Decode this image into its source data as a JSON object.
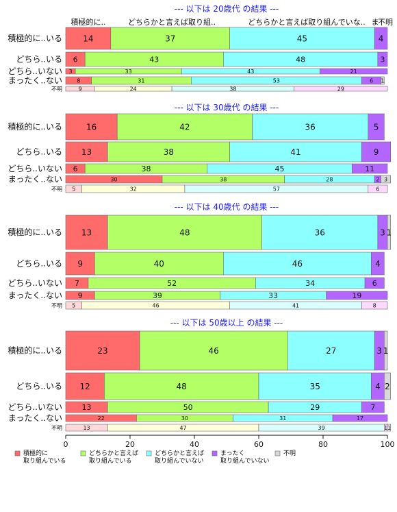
{
  "colors": {
    "積極的に取り組んでいる": "#ff6b6b",
    "どちらかと言えば取り組んでいる": "#b3ff66",
    "どちらかと言えば取り組んでいない": "#8cffff",
    "まったく取り組んでいない": "#b366ff",
    "不明": "#d9d9d9"
  },
  "chart_data": {
    "type": "bar",
    "orientation": "horizontal",
    "stacked": true,
    "xlim": [
      0,
      100
    ],
    "xticks": [
      0,
      20,
      40,
      60,
      80,
      100
    ],
    "column_headers": [
      "積極的に..",
      "どちらかと言えば取り組..",
      "どちらかと言えば取り組んでいな..",
      "ま",
      "不明"
    ],
    "legend": {
      "placement": "bottom",
      "entries": [
        {
          "key": "積極的に取り組んでいる",
          "lines": [
            "積極的に",
            "取り組んでいる"
          ]
        },
        {
          "key": "どちらかと言えば取り組んでいる",
          "lines": [
            "どちらかと言えば",
            "取り組んでいる"
          ]
        },
        {
          "key": "どちらかと言えば取り組んでいない",
          "lines": [
            "どちらかと言えば",
            "取り組んでいない"
          ]
        },
        {
          "key": "まったく取り組んでいない",
          "lines": [
            "まったく",
            "取り組んでいない"
          ]
        },
        {
          "key": "不明",
          "lines": [
            "不明"
          ]
        }
      ]
    },
    "panels": [
      {
        "title": "--- 以下は 20歳代 の結果 ---",
        "rows": [
          {
            "label": "積極的に..いる",
            "values": [
              14,
              37,
              45,
              4,
              0
            ]
          },
          {
            "label": "どちら..いる",
            "values": [
              6,
              43,
              48,
              3,
              0
            ]
          },
          {
            "label": "どちら..いない",
            "values": [
              3,
              33,
              43,
              21,
              0
            ]
          },
          {
            "label": "まったく..ない",
            "values": [
              8,
              31,
              53,
              6,
              1
            ]
          },
          {
            "label": "不明",
            "values": [
              9,
              24,
              38,
              29,
              0
            ]
          }
        ]
      },
      {
        "title": "--- 以下は 30歳代 の結果 ---",
        "rows": [
          {
            "label": "積極的に..いる",
            "values": [
              16,
              42,
              36,
              5,
              0
            ]
          },
          {
            "label": "どちら..いる",
            "values": [
              13,
              38,
              41,
              9,
              0
            ]
          },
          {
            "label": "どちら..いない",
            "values": [
              6,
              38,
              45,
              11,
              0
            ]
          },
          {
            "label": "まったく..ない",
            "values": [
              30,
              38,
              28,
              2,
              3
            ]
          },
          {
            "label": "不明",
            "values": [
              5,
              32,
              57,
              6,
              0
            ]
          }
        ]
      },
      {
        "title": "--- 以下は 40歳代 の結果 ---",
        "rows": [
          {
            "label": "積極的に..いる",
            "values": [
              13,
              48,
              36,
              3,
              1
            ]
          },
          {
            "label": "どちら..いる",
            "values": [
              9,
              40,
              46,
              4,
              0
            ]
          },
          {
            "label": "どちら..いない",
            "values": [
              7,
              52,
              34,
              6,
              0
            ]
          },
          {
            "label": "まったく..ない",
            "values": [
              9,
              39,
              33,
              19,
              0
            ]
          },
          {
            "label": "不明",
            "values": [
              5,
              46,
              41,
              8,
              0
            ]
          }
        ]
      },
      {
        "title": "--- 以下は 50歳以上 の結果 ---",
        "rows": [
          {
            "label": "積極的に..いる",
            "values": [
              23,
              46,
              27,
              3,
              1
            ]
          },
          {
            "label": "どちら..いる",
            "values": [
              12,
              48,
              35,
              4,
              2
            ]
          },
          {
            "label": "どちら..いない",
            "values": [
              13,
              50,
              29,
              7,
              0
            ]
          },
          {
            "label": "まったく..ない",
            "values": [
              22,
              30,
              31,
              17,
              0
            ]
          },
          {
            "label": "不明",
            "values": [
              13,
              47,
              39,
              1,
              1
            ]
          }
        ]
      }
    ]
  }
}
